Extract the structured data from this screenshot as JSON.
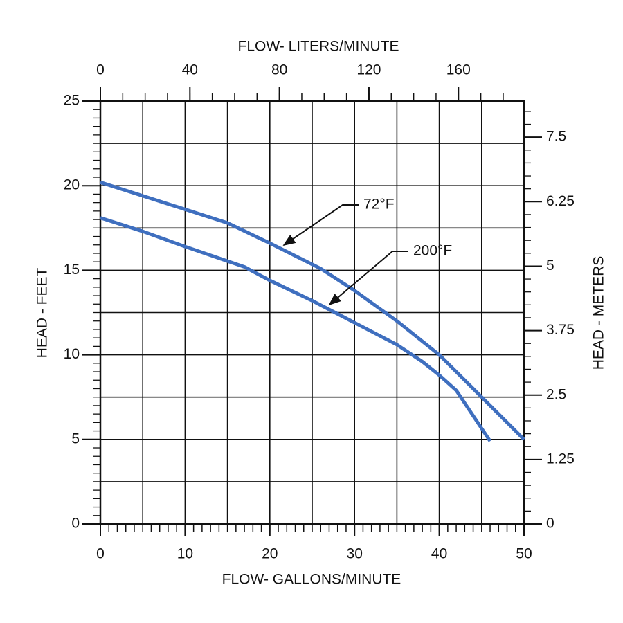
{
  "chart_data": {
    "type": "line",
    "x_label": "FLOW- GALLONS/MINUTE",
    "x2_label": "FLOW- LITERS/MINUTE",
    "y_label": "HEAD - FEET",
    "y2_label": "HEAD - METERS",
    "xlim": [
      0,
      50
    ],
    "xticks": [
      0,
      10,
      20,
      30,
      40,
      50
    ],
    "xgrid": [
      0,
      5,
      10,
      15,
      20,
      25,
      30,
      35,
      40,
      45,
      50
    ],
    "x_minor_step": 1,
    "x2lim": [
      0,
      189.3
    ],
    "x2ticks": [
      0,
      40,
      80,
      120,
      160
    ],
    "x2_minor_step": 10,
    "ylim": [
      0,
      25
    ],
    "yticks": [
      0,
      5,
      10,
      15,
      20,
      25
    ],
    "ygrid": [
      0,
      2.5,
      5,
      7.5,
      10,
      12.5,
      15,
      17.5,
      20,
      22.5,
      25
    ],
    "y_minor_step": 0.5,
    "y2lim": [
      0,
      8.2
    ],
    "y2ticks": [
      0,
      1.25,
      2.5,
      3.75,
      5,
      6.25,
      7.5
    ],
    "y2_minor_step": 0.25,
    "grid": true,
    "series": [
      {
        "name": "72°F",
        "color": "#3f6fbf",
        "x": [
          0,
          5,
          10,
          15,
          20,
          26,
          30,
          35,
          40,
          45,
          50
        ],
        "values": [
          20.2,
          19.4,
          18.6,
          17.8,
          16.6,
          15.1,
          13.8,
          12.0,
          10.0,
          7.5,
          5.0
        ]
      },
      {
        "name": "200°F",
        "color": "#3f6fbf",
        "x": [
          0,
          5,
          10,
          17,
          20,
          25,
          30,
          35,
          38,
          40,
          42,
          44,
          46
        ],
        "values": [
          18.1,
          17.3,
          16.4,
          15.2,
          14.4,
          13.2,
          11.9,
          10.6,
          9.6,
          8.8,
          7.9,
          6.4,
          4.9
        ]
      }
    ]
  }
}
